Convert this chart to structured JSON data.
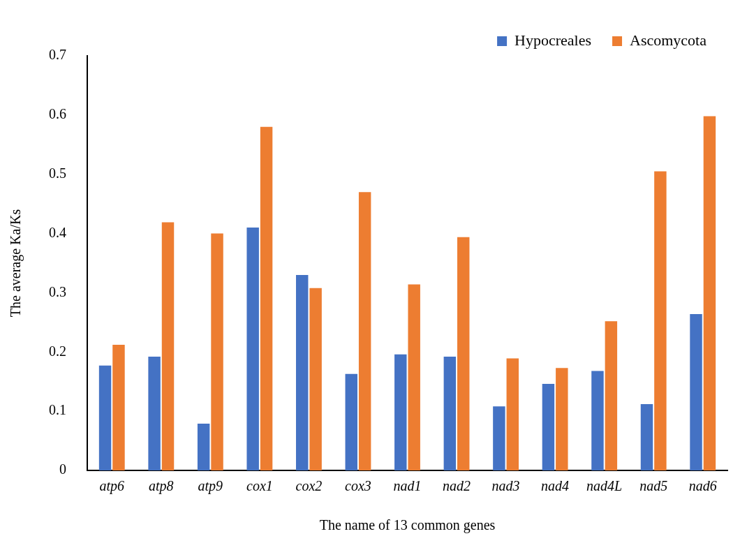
{
  "chart_data": {
    "type": "bar",
    "xlabel": "The name of 13 common genes",
    "ylabel": "The average Ka/Ks",
    "categories": [
      "atp6",
      "atp8",
      "atp9",
      "cox1",
      "cox2",
      "cox3",
      "nad1",
      "nad2",
      "nad3",
      "nad4",
      "nad4L",
      "nad5",
      "nad6"
    ],
    "series": [
      {
        "name": "Hypocreales",
        "color": "#4472c4",
        "values": [
          0.177,
          0.192,
          0.079,
          0.41,
          0.33,
          0.163,
          0.196,
          0.192,
          0.108,
          0.146,
          0.168,
          0.112,
          0.264
        ]
      },
      {
        "name": "Ascomycota",
        "color": "#ed7d31",
        "values": [
          0.212,
          0.419,
          0.4,
          0.58,
          0.308,
          0.47,
          0.314,
          0.394,
          0.189,
          0.173,
          0.252,
          0.505,
          0.598
        ]
      }
    ],
    "ylim": [
      0,
      0.7
    ],
    "yticks": [
      0,
      0.1,
      0.2,
      0.3,
      0.4,
      0.5,
      0.6,
      0.7
    ],
    "grid": false,
    "legend": "top right"
  }
}
